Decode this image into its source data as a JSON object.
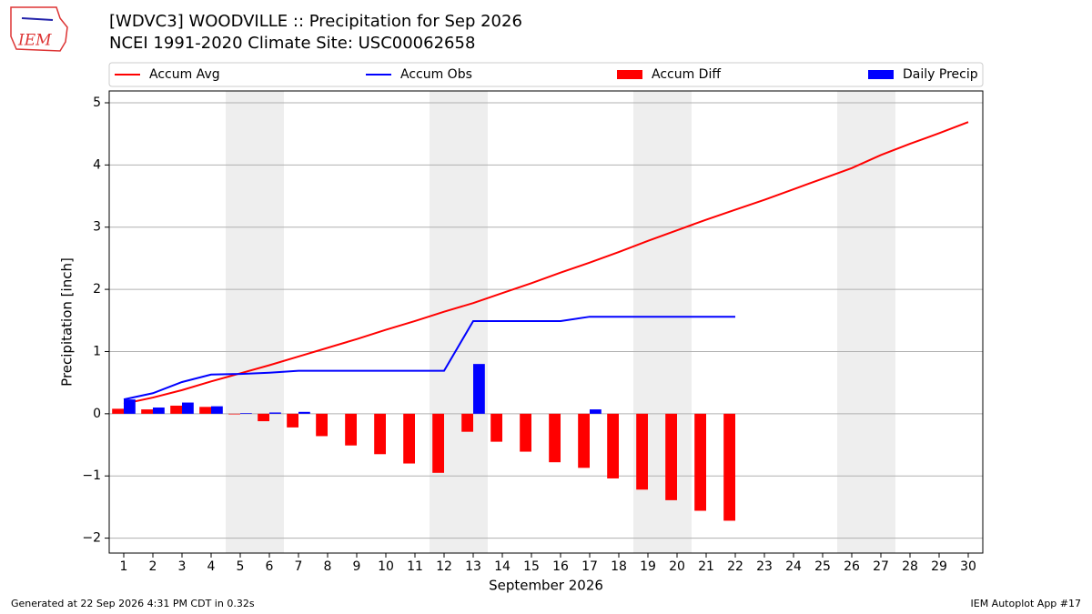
{
  "chart_data": {
    "type": "bar",
    "title": "[WDVC3] WOODVILLE :: Precipitation for Sep 2026",
    "subtitle": "NCEI 1991-2020 Climate Site: USC00062658",
    "logo_text": "IEM",
    "xlabel": "September 2026",
    "ylabel": "Precipitation [inch]",
    "footer_left": "Generated at 22 Sep 2026 4:31 PM CDT in 0.32s",
    "footer_right": "IEM Autoplot App #17",
    "x": [
      1,
      2,
      3,
      4,
      5,
      6,
      7,
      8,
      9,
      10,
      11,
      12,
      13,
      14,
      15,
      16,
      17,
      18,
      19,
      20,
      21,
      22,
      23,
      24,
      25,
      26,
      27,
      28,
      29,
      30
    ],
    "xlim": [
      0.5,
      30.5
    ],
    "xticks": [
      1,
      2,
      3,
      4,
      5,
      6,
      7,
      8,
      9,
      10,
      11,
      12,
      13,
      14,
      15,
      16,
      17,
      18,
      19,
      20,
      21,
      22,
      23,
      24,
      25,
      26,
      27,
      28,
      29,
      30
    ],
    "ylim": [
      -2.24,
      5.19
    ],
    "yticks": [
      {
        "value": -2,
        "label": "−2"
      },
      {
        "value": -1,
        "label": "−1"
      },
      0,
      1,
      2,
      3,
      4,
      5
    ],
    "grid": true,
    "shaded_days": [
      [
        5,
        6
      ],
      [
        12,
        13
      ],
      [
        19,
        20
      ],
      [
        26,
        27
      ]
    ],
    "series": [
      {
        "name": "Accum Avg",
        "type": "line",
        "color": "#ff0000",
        "values": [
          0.16,
          0.26,
          0.38,
          0.52,
          0.65,
          0.78,
          0.92,
          1.06,
          1.2,
          1.35,
          1.49,
          1.64,
          1.78,
          1.94,
          2.1,
          2.27,
          2.43,
          2.6,
          2.78,
          2.95,
          3.12,
          3.28,
          3.44,
          3.61,
          3.78,
          3.95,
          4.16,
          4.34,
          4.51,
          4.69
        ]
      },
      {
        "name": "Accum Obs",
        "type": "line",
        "color": "#0000ff",
        "values": [
          0.23,
          0.33,
          0.51,
          0.63,
          0.64,
          0.66,
          0.69,
          0.69,
          0.69,
          0.69,
          0.69,
          0.69,
          1.49,
          1.49,
          1.49,
          1.49,
          1.56,
          1.56,
          1.56,
          1.56,
          1.56,
          1.56,
          null,
          null,
          null,
          null,
          null,
          null,
          null,
          null
        ]
      },
      {
        "name": "Accum Diff",
        "type": "bar",
        "side": "left",
        "color": "#ff0000",
        "values": [
          0.08,
          0.07,
          0.13,
          0.11,
          -0.01,
          -0.12,
          -0.22,
          -0.36,
          -0.51,
          -0.65,
          -0.8,
          -0.95,
          -0.29,
          -0.45,
          -0.61,
          -0.78,
          -0.87,
          -1.04,
          -1.22,
          -1.39,
          -1.56,
          -1.72,
          null,
          null,
          null,
          null,
          null,
          null,
          null,
          null
        ]
      },
      {
        "name": "Daily Precip",
        "type": "bar",
        "side": "right",
        "color": "#0000ff",
        "values": [
          0.23,
          0.1,
          0.18,
          0.12,
          0.01,
          0.02,
          0.03,
          0,
          0,
          0,
          0,
          0,
          0.8,
          0,
          0,
          0,
          0.07,
          0,
          0,
          0,
          0,
          0,
          null,
          null,
          null,
          null,
          null,
          null,
          null,
          null
        ]
      }
    ]
  }
}
